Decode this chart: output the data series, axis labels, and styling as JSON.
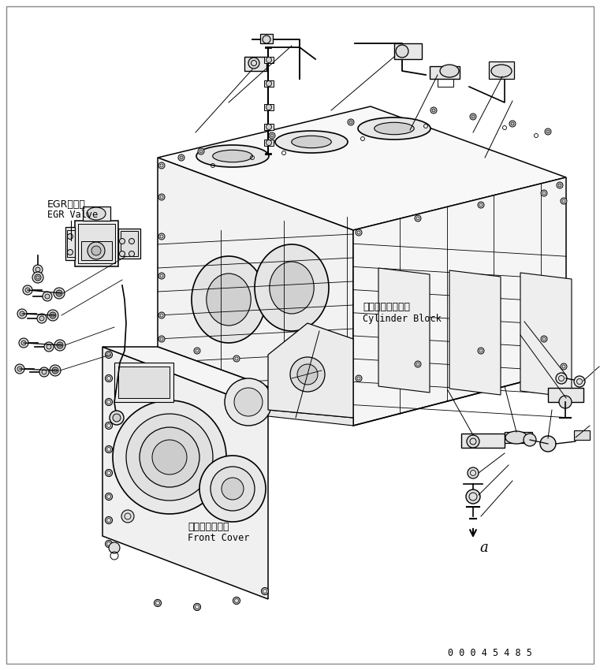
{
  "bg": "#ffffff",
  "line_color": "#000000",
  "part_number": "00045485",
  "egr_label_jp": "EGRバルブ",
  "egr_label_en": "EGR Valve",
  "cyl_label_jp": "シリンダブロック",
  "cyl_label_en": "Cylinder Block",
  "fc_label_jp": "フロントカバー",
  "fc_label_en": "Front Cover",
  "arrow_label": "a"
}
